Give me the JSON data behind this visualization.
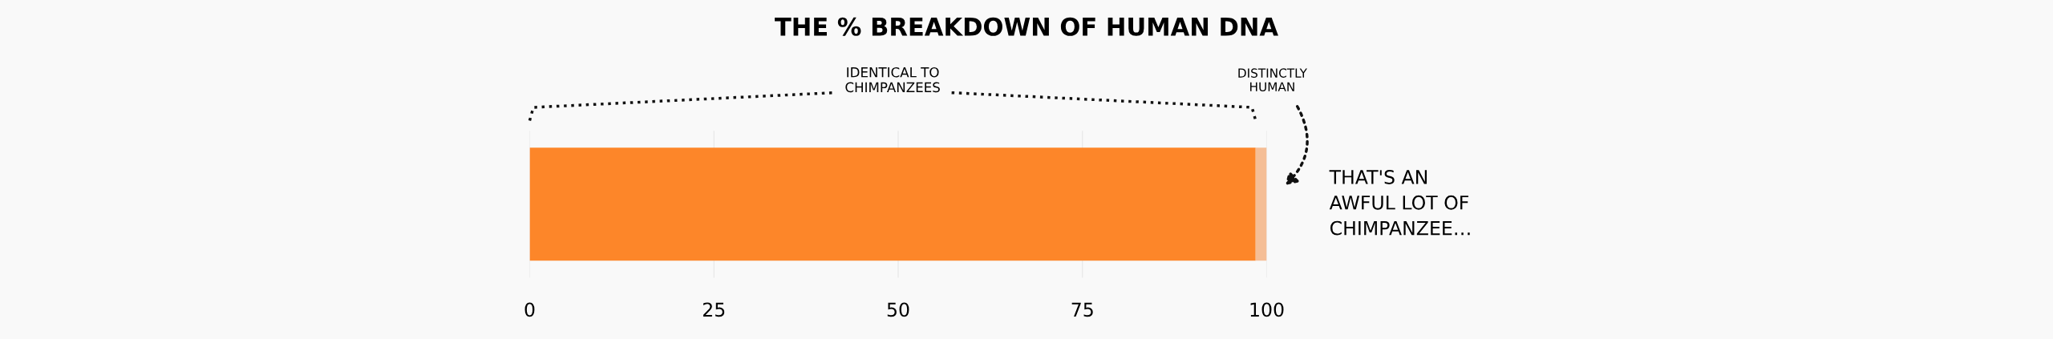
{
  "chart_data": {
    "type": "bar",
    "orientation": "horizontal",
    "stacked": true,
    "title": "THE % BREAKDOWN OF HUMAN DNA",
    "categories": [
      null
    ],
    "series": [
      {
        "color": "#fd8629",
        "values": [
          98.5
        ]
      },
      {
        "color": "#f5be96",
        "values": [
          1.5
        ]
      }
    ],
    "xlim": [
      0,
      100
    ],
    "xticks": [
      0,
      25,
      50,
      75,
      100
    ],
    "grid": "x",
    "annotations": [
      "IDENTICAL TO\nCHIMPANZEES",
      "DISTINCTLY\nHUMAN",
      "THAT'S AN\nAWFUL LOT OF\nCHIMPANZEE…"
    ]
  }
}
